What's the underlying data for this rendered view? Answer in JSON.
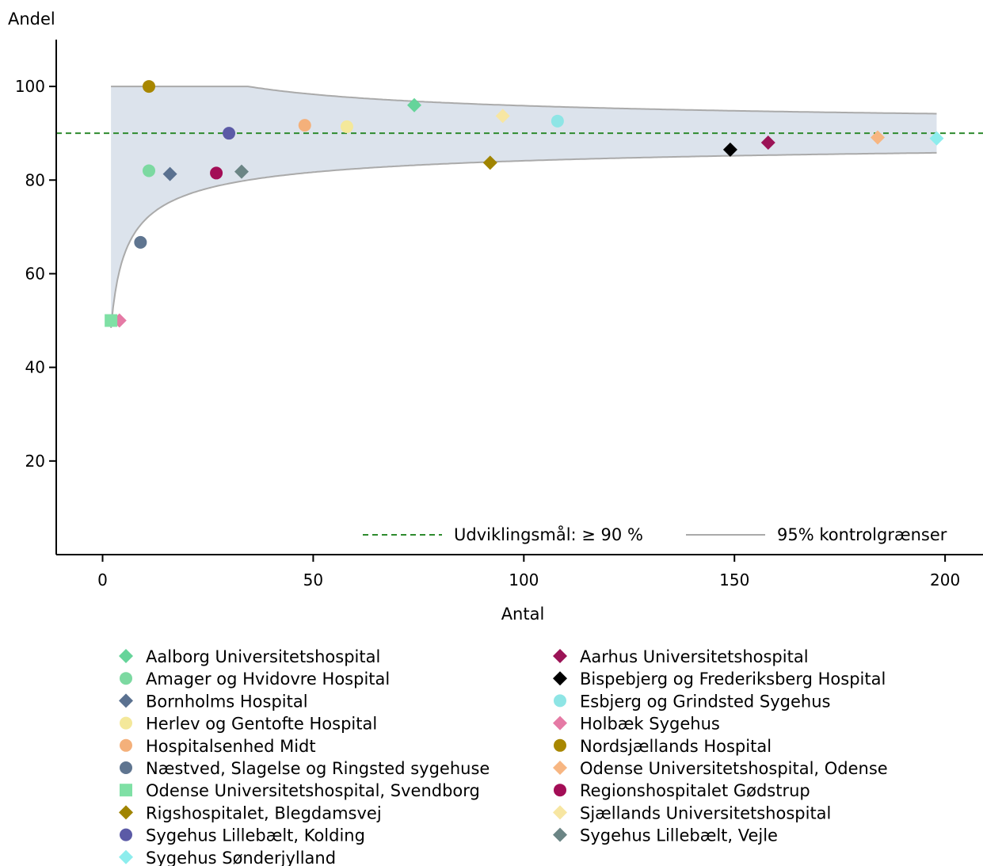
{
  "chart_data": {
    "type": "scatter",
    "title": "",
    "xlabel": "Antal",
    "ylabel": "Andel",
    "xlim": [
      -11,
      209
    ],
    "ylim": [
      0,
      110
    ],
    "xticks": [
      0,
      50,
      100,
      150,
      200
    ],
    "yticks": [
      20,
      40,
      60,
      80,
      100
    ],
    "target": {
      "label": "Udviklingsmål: ≥ 90 %",
      "value": 90,
      "color": "#2e8b2e"
    },
    "control_limits": {
      "label": "95% kontrolgrænser",
      "p": 0.9,
      "x_range": [
        2,
        198
      ],
      "fill_color": "#dce3ec",
      "line_color": "#aaaaaa"
    },
    "legend_position": "bottom",
    "series": [
      {
        "name": "Aalborg Universitetshospital",
        "color": "#66d49a",
        "marker": "diamond",
        "points": [
          [
            74,
            96
          ]
        ]
      },
      {
        "name": "Aarhus Universitetshospital",
        "color": "#9b1356",
        "marker": "diamond",
        "points": [
          [
            158,
            88
          ]
        ]
      },
      {
        "name": "Amager og Hvidovre Hospital",
        "color": "#7cd9a1",
        "marker": "circle",
        "points": [
          [
            11,
            82
          ]
        ]
      },
      {
        "name": "Bispebjerg og Frederiksberg Hospital",
        "color": "#000000",
        "marker": "diamond",
        "points": [
          [
            149,
            86.5
          ]
        ]
      },
      {
        "name": "Bornholms Hospital",
        "color": "#5a7190",
        "marker": "diamond",
        "points": [
          [
            16,
            81.3
          ]
        ]
      },
      {
        "name": "Esbjerg og Grindsted Sygehus",
        "color": "#8ee5e5",
        "marker": "circle",
        "points": [
          [
            108,
            92.6
          ]
        ]
      },
      {
        "name": "Herlev og Gentofte Hospital",
        "color": "#f4e89a",
        "marker": "circle",
        "points": [
          [
            58,
            91.4
          ]
        ]
      },
      {
        "name": "Holbæk Sygehus",
        "color": "#e57aa5",
        "marker": "diamond",
        "points": [
          [
            4,
            50
          ]
        ]
      },
      {
        "name": "Hospitalsenhed Midt",
        "color": "#f4b07a",
        "marker": "circle",
        "points": [
          [
            48,
            91.7
          ]
        ]
      },
      {
        "name": "Nordsjællands Hospital",
        "color": "#a88700",
        "marker": "circle",
        "points": [
          [
            11,
            100
          ]
        ]
      },
      {
        "name": "Næstved, Slagelse og Ringsted sygehuse",
        "color": "#5f7590",
        "marker": "circle",
        "points": [
          [
            9,
            66.7
          ]
        ]
      },
      {
        "name": "Odense Universitetshospital, Odense",
        "color": "#f7b682",
        "marker": "diamond",
        "points": [
          [
            184,
            89.1
          ]
        ]
      },
      {
        "name": "Odense Universitetshospital, Svendborg",
        "color": "#7fe0a5",
        "marker": "square",
        "points": [
          [
            2,
            50
          ]
        ]
      },
      {
        "name": "Regionshospitalet Gødstrup",
        "color": "#a30d56",
        "marker": "circle",
        "points": [
          [
            27,
            81.5
          ]
        ]
      },
      {
        "name": "Rigshospitalet, Blegdamsvej",
        "color": "#a08400",
        "marker": "diamond",
        "points": [
          [
            92,
            83.7
          ]
        ]
      },
      {
        "name": "Sjællands Universitetshospital",
        "color": "#f7e6a2",
        "marker": "diamond",
        "points": [
          [
            95,
            93.7
          ]
        ]
      },
      {
        "name": "Sygehus Lillebælt, Kolding",
        "color": "#5b5aa6",
        "marker": "circle",
        "points": [
          [
            30,
            90
          ]
        ]
      },
      {
        "name": "Sygehus Lillebælt, Vejle",
        "color": "#6b8585",
        "marker": "diamond",
        "points": [
          [
            33,
            81.8
          ]
        ]
      },
      {
        "name": "Sygehus Sønderjylland",
        "color": "#8deded",
        "marker": "diamond",
        "points": [
          [
            198,
            88.9
          ]
        ]
      }
    ]
  }
}
